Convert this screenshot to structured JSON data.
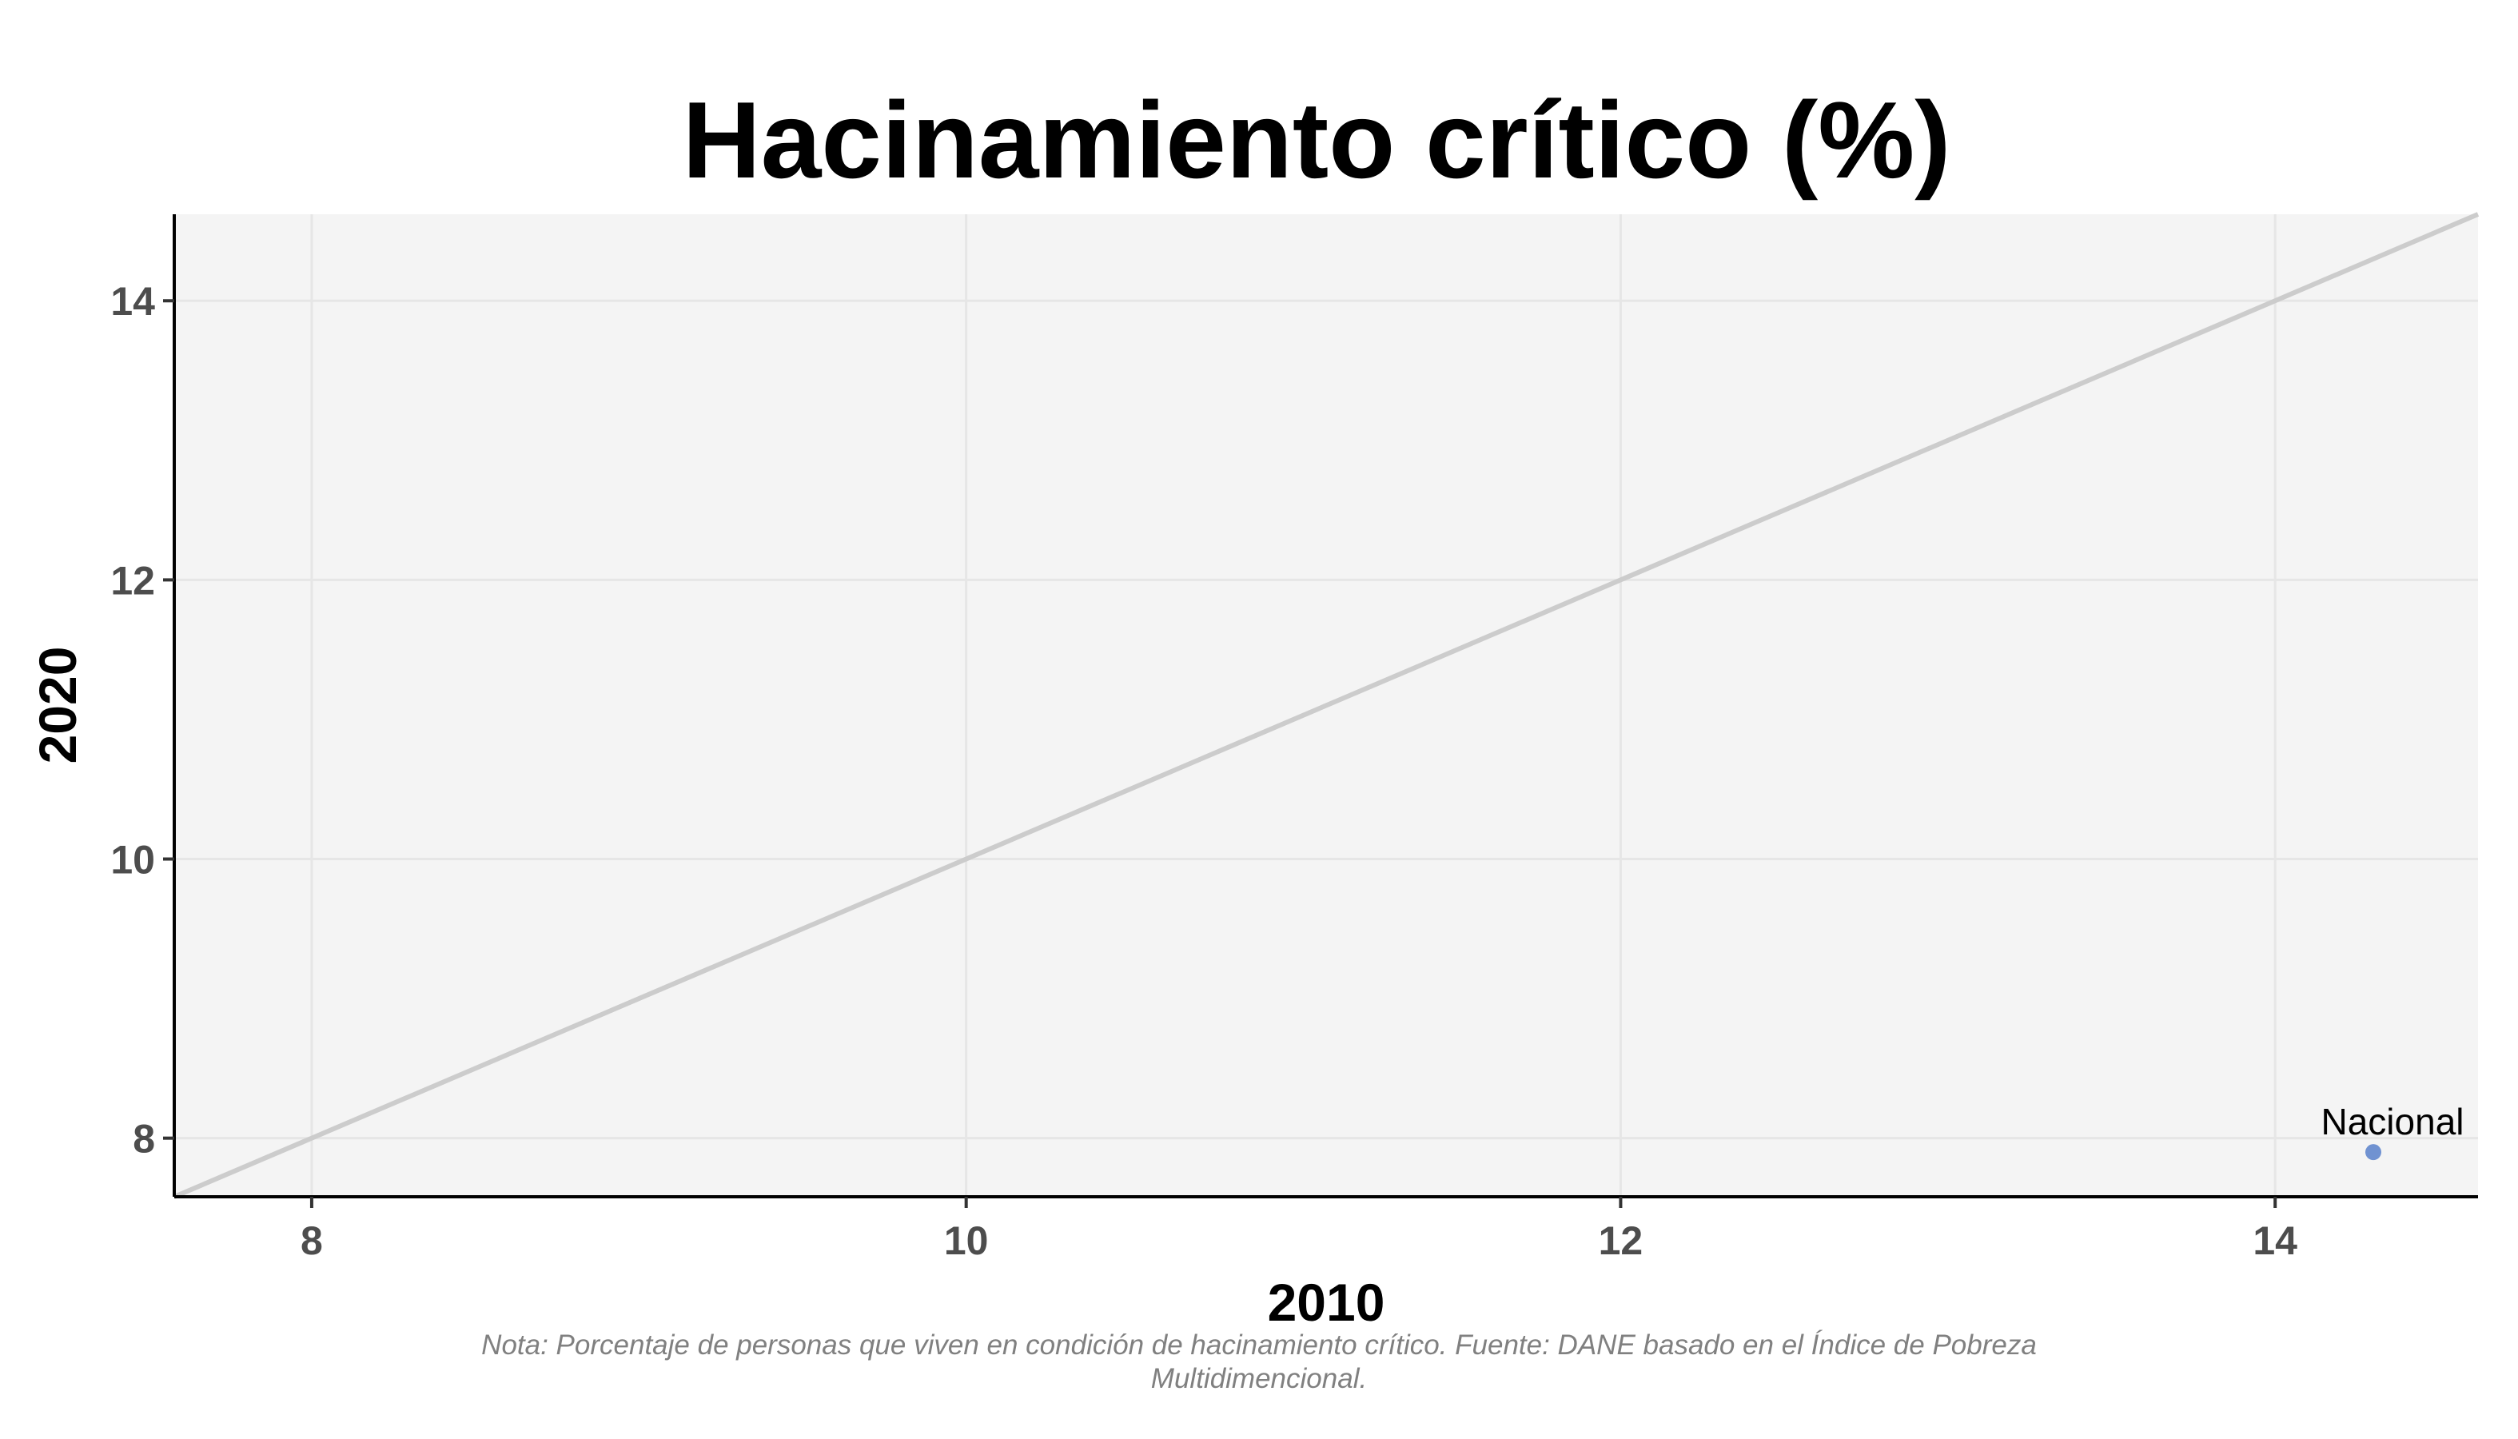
{
  "chart_data": {
    "type": "scatter",
    "title": "Hacinamiento crítico (%)",
    "xlabel": "2010",
    "ylabel": "2020",
    "xlim": [
      7.58,
      14.62
    ],
    "ylim": [
      7.58,
      14.62
    ],
    "x_ticks": [
      8,
      10,
      12,
      14
    ],
    "y_ticks": [
      8,
      10,
      12,
      14
    ],
    "grid": true,
    "reference_line": "y = x",
    "points": [
      {
        "label": "Nacional",
        "x": 14.3,
        "y": 7.9
      }
    ],
    "caption": "Nota: Porcentaje de personas que viven en condición de hacinamiento crítico. Fuente: DANE basado en el Índice de Pobreza Multidimencional."
  },
  "colors": {
    "panel": "#f4f4f4",
    "grid": "#e6e6e6",
    "reference_line": "#cccccc",
    "point": "#7092d1",
    "axis": "#000000"
  }
}
